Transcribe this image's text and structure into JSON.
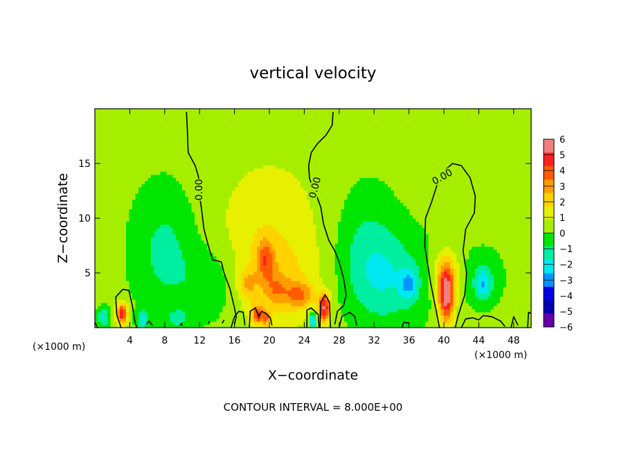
{
  "chart_data": {
    "type": "heatmap",
    "title": "vertical velocity",
    "xlabel": "X−coordinate",
    "ylabel": "Z−coordinate",
    "x_unit_left": "(×1000 m)",
    "x_unit_right": "(×1000 m)",
    "footer": "CONTOUR INTERVAL = 8.000E+00",
    "xlim": [
      0,
      50
    ],
    "ylim": [
      0,
      20
    ],
    "x_ticks": [
      4,
      8,
      12,
      16,
      20,
      24,
      28,
      32,
      36,
      40,
      44,
      48
    ],
    "x_tick_labels": [
      "4",
      "8",
      "12",
      "16",
      "20",
      "24",
      "28",
      "32",
      "36",
      "40",
      "44",
      "48"
    ],
    "y_ticks": [
      5,
      10,
      15
    ],
    "y_tick_labels": [
      "5",
      "10",
      "15"
    ],
    "contour_label": "0.00",
    "colorbar": {
      "levels": [
        6,
        5,
        4,
        3,
        2,
        1,
        0,
        -1,
        -2,
        -3,
        -4,
        -5,
        -6
      ],
      "labels": [
        "6",
        "5",
        "4",
        "3",
        "2",
        "1",
        "0",
        "−1",
        "−2",
        "−3",
        "−4",
        "−5",
        "−6"
      ],
      "colors": [
        "#f08080",
        "#ff2020",
        "#ff5a00",
        "#ff9c00",
        "#ffd200",
        "#e6f000",
        "#a6ee00",
        "#00e600",
        "#00eea0",
        "#00e8f0",
        "#0096ff",
        "#0000e8",
        "#0000b0",
        "#6600aa"
      ]
    },
    "background_value": 0.3,
    "features": [
      {
        "x": 20,
        "z": 8.0,
        "value": 1.5,
        "sx": 4.5,
        "sz": 5.5
      },
      {
        "x": 21,
        "z": 4.0,
        "value": 1.2,
        "sx": 3.0,
        "sz": 2.5
      },
      {
        "x": 19.5,
        "z": 6.3,
        "value": 2.8,
        "sx": 0.7,
        "sz": 1.3
      },
      {
        "x": 17.5,
        "z": 4.0,
        "value": 1.8,
        "sx": 0.7,
        "sz": 0.9
      },
      {
        "x": 20.8,
        "z": 3.5,
        "value": 1.6,
        "sx": 0.9,
        "sz": 1.0
      },
      {
        "x": 23.5,
        "z": 3.0,
        "value": 2.8,
        "sx": 1.1,
        "sz": 0.8
      },
      {
        "x": 26.3,
        "z": 1.8,
        "value": 5.5,
        "sx": 0.5,
        "sz": 0.9
      },
      {
        "x": 25.0,
        "z": 0.7,
        "value": -4.5,
        "sx": 0.3,
        "sz": 0.5
      },
      {
        "x": 18.6,
        "z": 1.2,
        "value": 4.2,
        "sx": 0.4,
        "sz": 0.6
      },
      {
        "x": 19.6,
        "z": 0.9,
        "value": 3.2,
        "sx": 0.35,
        "sz": 0.5
      },
      {
        "x": 3.1,
        "z": 1.3,
        "value": 5.3,
        "sx": 0.45,
        "sz": 0.7
      },
      {
        "x": 40.3,
        "z": 2.8,
        "value": 6.0,
        "sx": 0.65,
        "sz": 1.7
      },
      {
        "x": 40.2,
        "z": 5.0,
        "value": 2.5,
        "sx": 1.0,
        "sz": 1.5
      },
      {
        "x": 8.0,
        "z": 7.0,
        "value": -1.6,
        "sx": 2.5,
        "sz": 4.0
      },
      {
        "x": 31.0,
        "z": 7.0,
        "value": -1.4,
        "sx": 2.5,
        "sz": 4.0
      },
      {
        "x": 34.0,
        "z": 4.5,
        "value": -1.8,
        "sx": 3.0,
        "sz": 3.0
      },
      {
        "x": 44.5,
        "z": 4.5,
        "value": -1.3,
        "sx": 1.5,
        "sz": 1.8
      },
      {
        "x": 13.5,
        "z": 4.0,
        "value": -1.3,
        "sx": 2.5,
        "sz": 2.5
      },
      {
        "x": 1.0,
        "z": 1.0,
        "value": -2.5,
        "sx": 0.5,
        "sz": 0.6
      },
      {
        "x": 5.5,
        "z": 0.8,
        "value": -2.5,
        "sx": 0.5,
        "sz": 0.6
      },
      {
        "x": 9.5,
        "z": 0.8,
        "value": -1.5,
        "sx": 0.8,
        "sz": 0.6
      },
      {
        "x": 36.0,
        "z": 4.0,
        "value": -2.3,
        "sx": 0.7,
        "sz": 1.0
      },
      {
        "x": 44.5,
        "z": 4.0,
        "value": -2.2,
        "sx": 0.6,
        "sz": 0.9
      }
    ],
    "contours": [
      [
        [
          10.5,
          19.7
        ],
        [
          10.6,
          18
        ],
        [
          10.7,
          16
        ],
        [
          11.5,
          14.8
        ],
        [
          11.8,
          14.0
        ],
        [
          12.0,
          13.3
        ],
        [
          12.0,
          12.0
        ],
        [
          12.2,
          11.0
        ],
        [
          12.5,
          9.0
        ],
        [
          13.0,
          7.5
        ],
        [
          13.5,
          6.2
        ],
        [
          14.5,
          6.0
        ],
        [
          14.8,
          5.0
        ],
        [
          15.5,
          3.5
        ],
        [
          16.0,
          1.8
        ],
        [
          16.2,
          1.0
        ],
        [
          16.0,
          0.3
        ]
      ],
      [
        [
          27.3,
          19.7
        ],
        [
          27.2,
          18.5
        ],
        [
          26.5,
          17.6
        ],
        [
          25.5,
          16.8
        ],
        [
          24.8,
          16.0
        ],
        [
          24.5,
          14.8
        ],
        [
          24.6,
          13.6
        ],
        [
          25.3,
          12.3
        ],
        [
          25.9,
          11.0
        ],
        [
          26.2,
          9.5
        ],
        [
          26.8,
          8.0
        ],
        [
          27.5,
          7.0
        ],
        [
          28.0,
          6.0
        ],
        [
          28.5,
          4.5
        ],
        [
          28.8,
          3.0
        ],
        [
          28.5,
          2.0
        ],
        [
          27.8,
          1.5
        ],
        [
          27.5,
          0.3
        ]
      ],
      [
        [
          39.5,
          0.0
        ],
        [
          38.5,
          4.0
        ],
        [
          37.8,
          7.5
        ],
        [
          37.9,
          10.0
        ],
        [
          38.6,
          11.5
        ],
        [
          39.2,
          13.0
        ],
        [
          40.0,
          14.3
        ],
        [
          41.0,
          15.0
        ],
        [
          42.0,
          14.8
        ],
        [
          43.0,
          13.7
        ],
        [
          43.6,
          12.0
        ],
        [
          43.5,
          10.5
        ],
        [
          42.5,
          9.0
        ],
        [
          42.2,
          7.0
        ],
        [
          42.6,
          5.0
        ],
        [
          42.4,
          3.0
        ],
        [
          41.6,
          1.0
        ],
        [
          41.3,
          0.0
        ]
      ],
      [
        [
          3.0,
          0.0
        ],
        [
          2.5,
          1.2
        ],
        [
          2.4,
          2.8
        ],
        [
          3.2,
          3.5
        ],
        [
          3.9,
          3.4
        ],
        [
          4.3,
          2.0
        ],
        [
          4.6,
          0.5
        ],
        [
          4.8,
          0.0
        ]
      ],
      [
        [
          0.3,
          0.0
        ],
        [
          0.0,
          0.5
        ]
      ],
      [
        [
          5.9,
          0.3
        ],
        [
          6.2,
          0.6
        ],
        [
          6.6,
          0.2
        ]
      ],
      [
        [
          9.8,
          0.2
        ],
        [
          9.9,
          0.4
        ],
        [
          10.0,
          0.2
        ]
      ],
      [
        [
          13.0,
          0.4
        ],
        [
          13.2,
          0.6
        ]
      ],
      [
        [
          14.6,
          0.4
        ],
        [
          14.8,
          0.7
        ]
      ],
      [
        [
          15.6,
          0.0
        ],
        [
          16.0,
          1.0
        ],
        [
          16.5,
          1.5
        ],
        [
          17.0,
          1.4
        ],
        [
          17.2,
          0.2
        ]
      ],
      [
        [
          17.7,
          0.0
        ],
        [
          17.8,
          1.5
        ],
        [
          18.4,
          1.8
        ],
        [
          18.8,
          1.0
        ],
        [
          19.1,
          1.5
        ],
        [
          19.6,
          1.3
        ],
        [
          20.1,
          0.9
        ],
        [
          20.3,
          0.2
        ]
      ],
      [
        [
          24.3,
          0.0
        ],
        [
          24.3,
          1.6
        ],
        [
          24.8,
          1.8
        ],
        [
          25.6,
          1.2
        ],
        [
          25.7,
          0.0
        ]
      ],
      [
        [
          25.8,
          0.0
        ],
        [
          25.9,
          2.3
        ],
        [
          26.4,
          3.0
        ],
        [
          26.9,
          2.3
        ],
        [
          27.0,
          0.0
        ]
      ],
      [
        [
          28.0,
          0.0
        ],
        [
          28.3,
          1.0
        ],
        [
          29.2,
          1.4
        ],
        [
          29.8,
          1.0
        ],
        [
          30.0,
          0.2
        ]
      ],
      [
        [
          35.2,
          0.0
        ],
        [
          35.4,
          0.5
        ],
        [
          36.0,
          0.4
        ]
      ],
      [
        [
          42.0,
          0.0
        ],
        [
          42.5,
          0.8
        ],
        [
          43.3,
          0.9
        ],
        [
          44.0,
          0.7
        ],
        [
          44.5,
          1.1
        ],
        [
          45.5,
          1.0
        ],
        [
          46.5,
          0.6
        ],
        [
          47.0,
          0.1
        ]
      ],
      [
        [
          47.7,
          0.0
        ],
        [
          48.0,
          1.0
        ],
        [
          48.5,
          0.2
        ]
      ],
      [
        [
          49.6,
          0.0
        ],
        [
          49.7,
          1.4
        ],
        [
          50.0,
          1.3
        ]
      ]
    ],
    "contour_labels_at": [
      [
        11.9,
        12.6,
        -90
      ],
      [
        25.2,
        12.8,
        -75
      ],
      [
        39.8,
        13.8,
        -30
      ]
    ],
    "grid": false,
    "legend": "colorbar-right"
  }
}
